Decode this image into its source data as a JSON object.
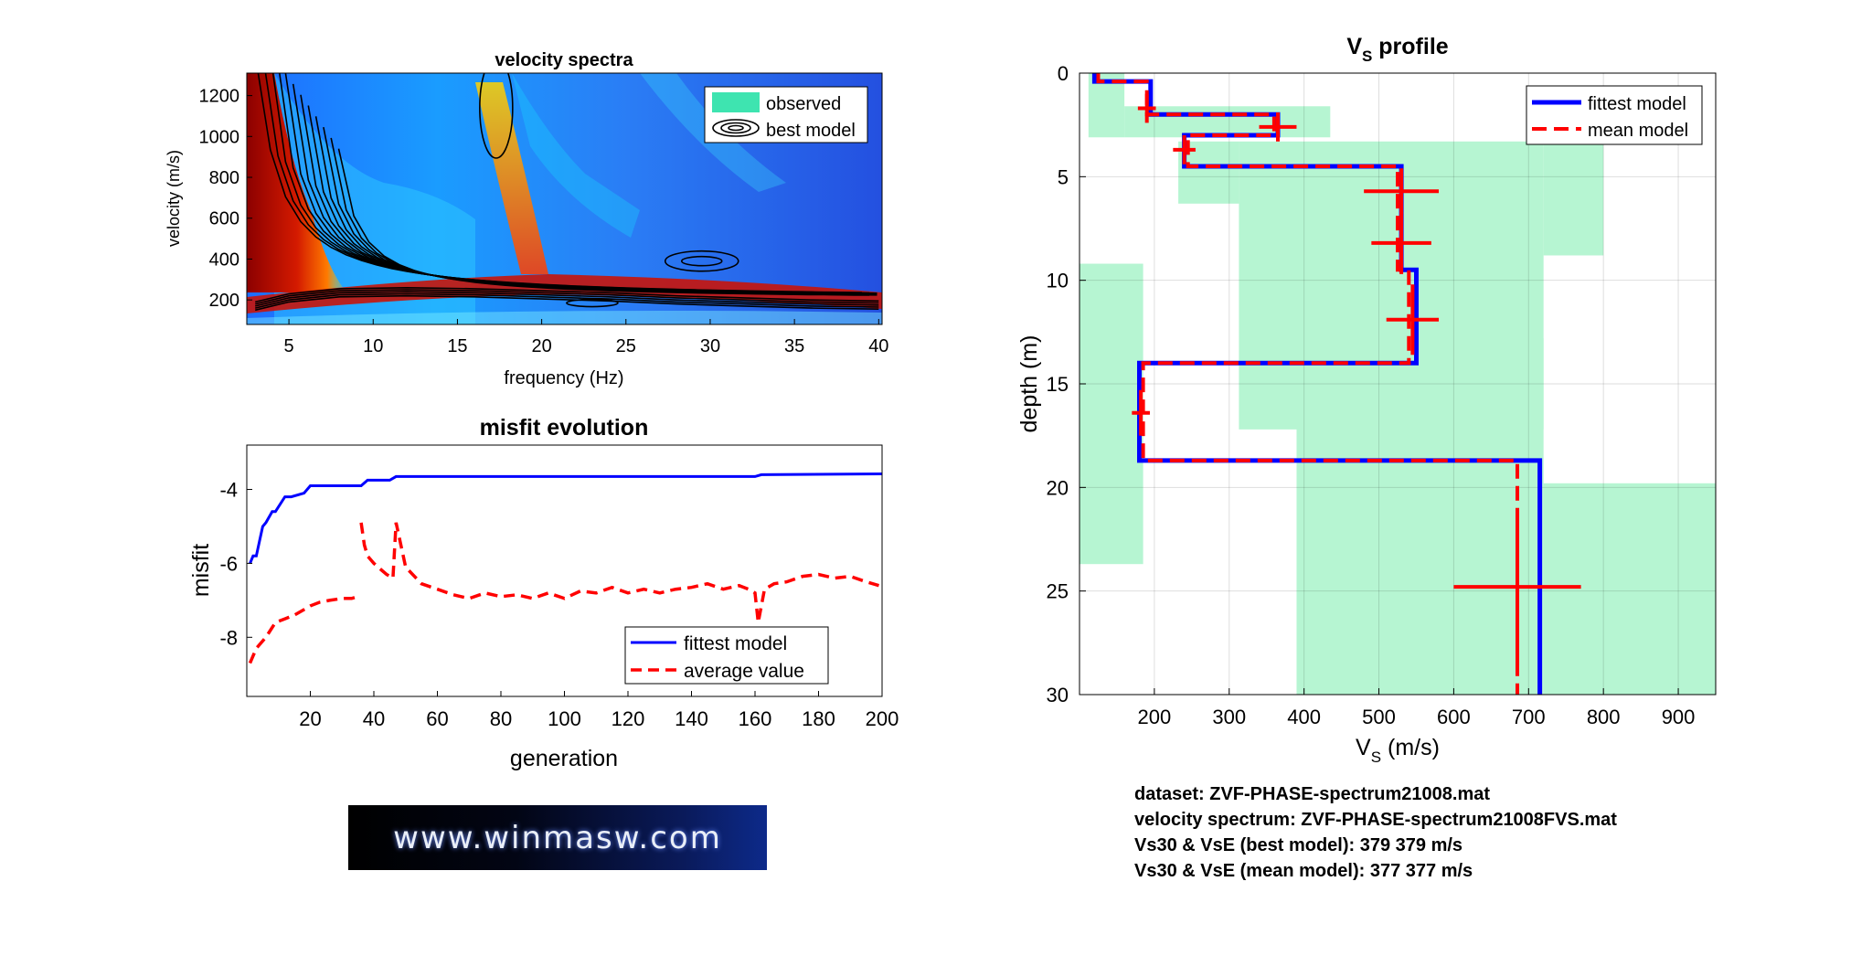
{
  "chart_data": [
    {
      "type": "heatmap",
      "title": "velocity spectra",
      "xlabel": "frequency (Hz)",
      "ylabel": "velocity (m/s)",
      "xlim": [
        2.5,
        40.2
      ],
      "ylim": [
        80,
        1310
      ],
      "xticks": [
        "5",
        "10",
        "15",
        "20",
        "25",
        "30",
        "35",
        "40"
      ],
      "yticks": [
        "200",
        "400",
        "600",
        "800",
        "1000",
        "1200"
      ],
      "legend": {
        "position": "top-right",
        "entries": [
          "observed",
          "best model"
        ]
      },
      "fundamental_mode": {
        "x": [
          3,
          5,
          8,
          12,
          16,
          20,
          24,
          28,
          32,
          36,
          40
        ],
        "y": [
          170,
          210,
          235,
          240,
          235,
          225,
          215,
          200,
          190,
          180,
          175
        ]
      }
    },
    {
      "type": "line",
      "title": "misfit evolution",
      "xlabel": "generation",
      "ylabel": "misfit",
      "xlim": [
        0,
        200
      ],
      "ylim": [
        -9.6,
        -2.8
      ],
      "xticks": [
        "20",
        "40",
        "60",
        "80",
        "100",
        "120",
        "140",
        "160",
        "180",
        "200"
      ],
      "yticks": [
        "-8",
        "-6",
        "-4"
      ],
      "legend": {
        "position": "bottom-right"
      },
      "series": [
        {
          "name": "fittest model",
          "color": "#0000ff",
          "style": "solid",
          "x": [
            1,
            2,
            3,
            4,
            5,
            6,
            8,
            9,
            12,
            14,
            18,
            20,
            36,
            38,
            45,
            47,
            160,
            162,
            200
          ],
          "y": [
            -6.0,
            -5.8,
            -5.8,
            -5.4,
            -5.0,
            -4.9,
            -4.6,
            -4.6,
            -4.2,
            -4.2,
            -4.1,
            -3.9,
            -3.9,
            -3.75,
            -3.75,
            -3.65,
            -3.65,
            -3.6,
            -3.58
          ]
        },
        {
          "name": "average value",
          "color": "#ff0000",
          "style": "dashed",
          "x": [
            1,
            3,
            6,
            9,
            12,
            15,
            18,
            20,
            23,
            26,
            30,
            33,
            35
          ],
          "y": [
            -8.7,
            -8.3,
            -8.0,
            -7.6,
            -7.5,
            -7.4,
            -7.25,
            -7.15,
            -7.05,
            -7.0,
            -6.95,
            -6.95,
            -6.9
          ],
          "x2": [
            36,
            37,
            38,
            40,
            42,
            44,
            46,
            47,
            50,
            55,
            60,
            65,
            70,
            75,
            80,
            85,
            90,
            95,
            100,
            105,
            110,
            115,
            120,
            125,
            130,
            135,
            140,
            145,
            150,
            155,
            158,
            160,
            161,
            163,
            166,
            170,
            175,
            180,
            185,
            190,
            195,
            199
          ],
          "y2": [
            -4.9,
            -5.5,
            -5.8,
            -6.0,
            -6.15,
            -6.3,
            -6.4,
            -4.9,
            -6.1,
            -6.55,
            -6.7,
            -6.85,
            -6.95,
            -6.8,
            -6.9,
            -6.85,
            -6.95,
            -6.8,
            -6.95,
            -6.75,
            -6.8,
            -6.65,
            -6.8,
            -6.7,
            -6.8,
            -6.7,
            -6.65,
            -6.55,
            -6.7,
            -6.6,
            -6.7,
            -6.8,
            -7.6,
            -6.7,
            -6.55,
            -6.5,
            -6.35,
            -6.3,
            -6.4,
            -6.35,
            -6.5,
            -6.6
          ]
        }
      ]
    },
    {
      "type": "line",
      "title": "V",
      "title_sub": "S",
      "title_rest": " profile",
      "xlabel": "V",
      "xlabel_sub": "S",
      "xlabel_rest": " (m/s)",
      "ylabel": "depth (m)",
      "xlim": [
        100,
        950
      ],
      "ylim": [
        0,
        30
      ],
      "xticks": [
        "200",
        "300",
        "400",
        "500",
        "600",
        "700",
        "800",
        "900"
      ],
      "yticks": [
        "0",
        "5",
        "10",
        "15",
        "20",
        "25",
        "30"
      ],
      "legend": {
        "position": "top-right"
      },
      "series": [
        {
          "name": "fittest model",
          "color": "#0000ff",
          "style": "solid",
          "vs": [
            120,
            195,
            365,
            240,
            530,
            550,
            180,
            715
          ],
          "depth_top": [
            0,
            0.4,
            2.0,
            3.0,
            4.5,
            9.5,
            14.0,
            18.7,
            30
          ]
        },
        {
          "name": "mean model",
          "color": "#ff0000",
          "style": "dashed",
          "vs": [
            125,
            190,
            360,
            245,
            525,
            540,
            185,
            685
          ],
          "depth_top": [
            0,
            0.4,
            2.0,
            3.0,
            4.5,
            9.5,
            14.0,
            18.7,
            30
          ]
        }
      ],
      "error_bars": [
        {
          "x": 190,
          "y": 1.7,
          "dx": 12,
          "dy": 0.7
        },
        {
          "x": 365,
          "y": 2.6,
          "dx": 25,
          "dy": 0.7
        },
        {
          "x": 240,
          "y": 3.7,
          "dx": 15,
          "dy": 0.7
        },
        {
          "x": 530,
          "y": 5.7,
          "dx": 50,
          "dy": 1.1
        },
        {
          "x": 530,
          "y": 8.2,
          "dx": 40,
          "dy": 1.5
        },
        {
          "x": 545,
          "y": 11.9,
          "dx": 35,
          "dy": 1.7
        },
        {
          "x": 182,
          "y": 16.4,
          "dx": 12,
          "dy": 1.1
        },
        {
          "x": 685,
          "y": 24.8,
          "dx": 85,
          "dy": 3.8
        }
      ],
      "search_space": [
        {
          "x0": 112,
          "x1": 160,
          "y0": 0,
          "y1": 3.1
        },
        {
          "x0": 160,
          "x1": 435,
          "y0": 1.6,
          "y1": 3.1
        },
        {
          "x0": 232,
          "x1": 313,
          "y0": 3.3,
          "y1": 6.3
        },
        {
          "x0": 313,
          "x1": 720,
          "y0": 3.3,
          "y1": 17.2
        },
        {
          "x0": 720,
          "x1": 800,
          "y0": 3.3,
          "y1": 8.8
        },
        {
          "x0": 100,
          "x1": 185,
          "y0": 9.2,
          "y1": 23.7
        },
        {
          "x0": 390,
          "x1": 720,
          "y0": 12.8,
          "y1": 30
        },
        {
          "x0": 720,
          "x1": 950,
          "y0": 19.8,
          "y1": 30
        }
      ]
    }
  ],
  "info": {
    "dataset": "dataset: ZVF-PHASE-spectrum21008.mat",
    "spectrum": "velocity spectrum: ZVF-PHASE-spectrum21008FVS.mat",
    "best": "Vs30 & VsE (best model): 379  379 m/s",
    "mean": "Vs30 & VsE (mean model): 377  377 m/s"
  },
  "banner": "www.winmasw.com"
}
